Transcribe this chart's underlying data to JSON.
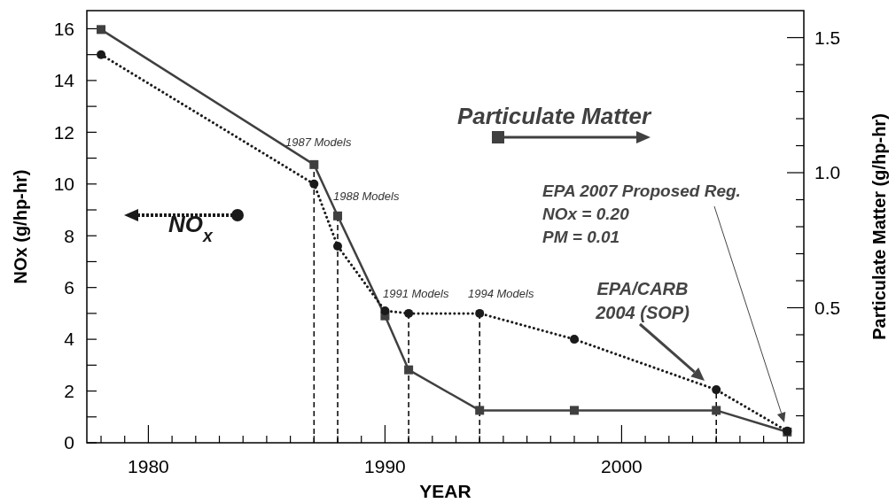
{
  "chart_data": {
    "type": "line",
    "xlabel": "YEAR",
    "ylabel": "NOx (g/hp-hr)",
    "y2label": "Particulate Matter (g/hp-hr)",
    "xlim": [
      1977.4,
      2007.7
    ],
    "ylim": [
      0,
      16.7
    ],
    "y2lim": [
      0,
      1.6
    ],
    "xticks": [
      {
        "value": 1978,
        "label": null
      },
      {
        "value": 1979,
        "label": null
      },
      1980,
      {
        "value": 1981,
        "label": null
      },
      {
        "value": 1982,
        "label": null
      },
      {
        "value": 1983,
        "label": null
      },
      {
        "value": 1984,
        "label": null
      },
      {
        "value": 1985,
        "label": null
      },
      {
        "value": 1986,
        "label": null
      },
      {
        "value": 1987,
        "label": null
      },
      {
        "value": 1988,
        "label": null
      },
      {
        "value": 1989,
        "label": null
      },
      1990,
      {
        "value": 1991,
        "label": null
      },
      {
        "value": 1992,
        "label": null
      },
      {
        "value": 1993,
        "label": null
      },
      {
        "value": 1994,
        "label": null
      },
      {
        "value": 1995,
        "label": null
      },
      {
        "value": 1996,
        "label": null
      },
      {
        "value": 1997,
        "label": null
      },
      {
        "value": 1998,
        "label": null
      },
      {
        "value": 1999,
        "label": null
      },
      2000,
      {
        "value": 2001,
        "label": null
      },
      {
        "value": 2002,
        "label": null
      },
      {
        "value": 2003,
        "label": null
      },
      {
        "value": 2004,
        "label": null
      },
      {
        "value": 2005,
        "label": null
      },
      {
        "value": 2006,
        "label": null
      },
      {
        "value": 2007,
        "label": null
      }
    ],
    "yticks": [
      0,
      {
        "value": 1,
        "label": null
      },
      2,
      {
        "value": 3,
        "label": null
      },
      4,
      {
        "value": 5,
        "label": null
      },
      6,
      {
        "value": 7,
        "label": null
      },
      8,
      {
        "value": 9,
        "label": null
      },
      10,
      {
        "value": 11,
        "label": null
      },
      12,
      {
        "value": 13,
        "label": null
      },
      14,
      {
        "value": 15,
        "label": null
      },
      16
    ],
    "y2ticks": [
      {
        "value": 0.1,
        "label": null
      },
      {
        "value": 0.2,
        "label": null
      },
      {
        "value": 0.3,
        "label": null
      },
      {
        "value": 0.4,
        "label": null
      },
      {
        "value": 0.5,
        "label": "0.5"
      },
      {
        "value": 0.6,
        "label": null
      },
      {
        "value": 0.7,
        "label": null
      },
      {
        "value": 0.8,
        "label": null
      },
      {
        "value": 0.9,
        "label": null
      },
      {
        "value": 1.0,
        "label": "1.0"
      },
      {
        "value": 1.1,
        "label": null
      },
      {
        "value": 1.2,
        "label": null
      },
      {
        "value": 1.3,
        "label": null
      },
      {
        "value": 1.4,
        "label": null
      },
      {
        "value": 1.5,
        "label": "1.5"
      }
    ],
    "series": [
      {
        "name": "NO$_{x}$",
        "color": "#1a1a1a",
        "marker": "circle",
        "line_style": "dotted",
        "x": [
          1978,
          1987,
          1988,
          1990,
          1991,
          1994,
          1998,
          2004,
          2007
        ],
        "values": [
          15,
          10,
          7.6,
          5.1,
          5,
          5,
          4,
          2.05,
          0.45
        ]
      },
      {
        "name": "Particulate Matter",
        "color": "#404040",
        "marker": "square",
        "line_style": "solid",
        "axis": "y2",
        "x": [
          1978,
          1987,
          1988,
          1990,
          1991,
          1994,
          1998,
          2004,
          2007
        ],
        "values": [
          1.53,
          1.03,
          0.84,
          0.47,
          0.27,
          0.12,
          0.12,
          0.12,
          0.04
        ]
      }
    ],
    "ref_lines": [
      {
        "axis": "x",
        "value": 1987,
        "color": "#000000",
        "line_style": "dashed"
      },
      {
        "axis": "x",
        "value": 1988,
        "color": "#000000",
        "line_style": "dashed"
      },
      {
        "axis": "x",
        "value": 1991,
        "color": "#000000",
        "line_style": "dashed"
      },
      {
        "axis": "x",
        "value": 1994,
        "color": "#000000",
        "line_style": "dashed"
      },
      {
        "axis": "x",
        "value": 2004,
        "color": "#000000",
        "line_style": "dashed"
      }
    ],
    "annotations": [
      "1987 Models",
      "1988 Models",
      "1991 Models",
      "1994 Models",
      "EPA/CARB\n2004 (SOP)",
      "EPA 2007 Proposed Reg.\nNOx = 0.20\nPM = 0.01"
    ],
    "legend": "top"
  }
}
